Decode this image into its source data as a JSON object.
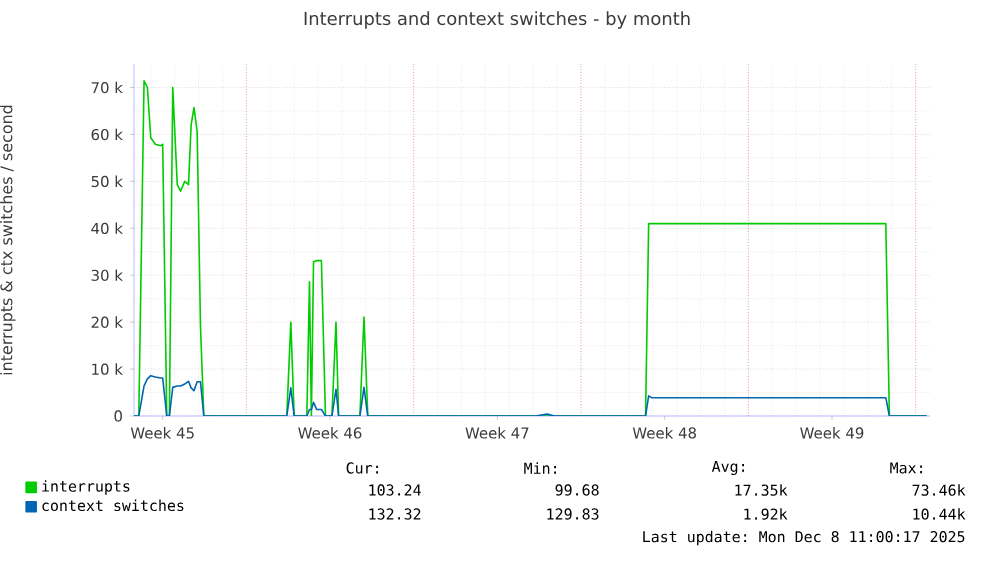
{
  "chart_data": {
    "type": "line",
    "title": "Interrupts and context switches - by month",
    "ylabel": "interrupts & ctx switches / second",
    "x": [
      "2025-11-05T07:12",
      "2025-11-05T12:00",
      "2025-11-05T17:17",
      "2025-11-05T20:38",
      "2025-11-06T00:00",
      "2025-11-06T04:34",
      "2025-11-06T10:05",
      "2025-11-06T12:00",
      "2025-11-06T16:05",
      "2025-11-06T18:43",
      "2025-11-06T22:05",
      "2025-11-07T02:38",
      "2025-11-07T06:00",
      "2025-11-07T10:05",
      "2025-11-07T13:55",
      "2025-11-07T16:34",
      "2025-11-07T19:26",
      "2025-11-07T22:34",
      "2025-11-08T01:55",
      "2025-11-08T05:17",
      "2025-11-11T16:34",
      "2025-11-11T20:38",
      "2025-11-12T00:00",
      "2025-11-12T12:43",
      "2025-11-12T15:22",
      "2025-11-12T17:17",
      "2025-11-12T19:26",
      "2025-11-12T22:34",
      "2025-11-13T03:22",
      "2025-11-13T07:26",
      "2025-11-13T13:55",
      "2025-11-13T18:00",
      "2025-11-13T20:38",
      "2025-11-14T18:00",
      "2025-11-14T22:05",
      "2025-11-15T01:55",
      "2025-11-22T02:24",
      "2025-11-22T13:55",
      "2025-11-22T21:36",
      "2025-11-26T16:48",
      "2025-11-26T19:55",
      "2025-11-26T22:48",
      "2025-12-06T18:00",
      "2025-12-06T21:36",
      "2025-12-08T11:00"
    ],
    "series": [
      {
        "name": "interrupts",
        "color": "#00cc00",
        "values": [
          0,
          0,
          71400,
          70000,
          59300,
          57900,
          57600,
          57900,
          0,
          0,
          70000,
          49300,
          47900,
          50000,
          49300,
          62100,
          65700,
          60700,
          19300,
          0,
          0,
          20000,
          0,
          0,
          28600,
          0,
          32900,
          33100,
          33100,
          0,
          0,
          20000,
          0,
          0,
          21100,
          0,
          0,
          0,
          0,
          0,
          41000,
          41000,
          41000,
          0,
          0
        ]
      },
      {
        "name": "context switches",
        "color": "#0066b3",
        "values": [
          0,
          0,
          6400,
          7900,
          8600,
          8300,
          8100,
          8100,
          0,
          0,
          6100,
          6400,
          6400,
          6800,
          7400,
          6000,
          5400,
          7300,
          7300,
          0,
          0,
          6000,
          0,
          0,
          1400,
          1400,
          2900,
          1400,
          1400,
          0,
          0,
          5700,
          0,
          0,
          6100,
          0,
          0,
          400,
          0,
          0,
          4300,
          3900,
          3900,
          0,
          0
        ]
      }
    ],
    "xlim": [
      "2025-11-05T07:12",
      "2025-12-08T14:24"
    ],
    "xticks": [
      {
        "value": "2025-11-06T12:00",
        "label": "Week 45"
      },
      {
        "value": "2025-11-10",
        "label": null
      },
      {
        "value": "2025-11-13T12:00",
        "label": "Week 46"
      },
      {
        "value": "2025-11-17",
        "label": null
      },
      {
        "value": "2025-11-20T12:00",
        "label": "Week 47"
      },
      {
        "value": "2025-11-24",
        "label": null
      },
      {
        "value": "2025-11-27T12:00",
        "label": "Week 48"
      },
      {
        "value": "2025-12-01",
        "label": null
      },
      {
        "value": "2025-12-04T12:00",
        "label": "Week 49"
      },
      {
        "value": "2025-12-08",
        "label": null
      }
    ],
    "ylim": [
      0,
      75000
    ],
    "yticks": [
      0,
      {
        "value": 10000,
        "label": "10 k"
      },
      {
        "value": 20000,
        "label": "20 k"
      },
      {
        "value": 30000,
        "label": "30 k"
      },
      {
        "value": 40000,
        "label": "40 k"
      },
      {
        "value": 50000,
        "label": "50 k"
      },
      {
        "value": 60000,
        "label": "60 k"
      },
      {
        "value": 70000,
        "label": "70 k"
      }
    ],
    "grid": true,
    "legend": "bottom",
    "annotations": [
      "Cur:",
      "Min:",
      "Avg:",
      "Max:",
      "103.24",
      "99.68",
      "17.35k",
      "73.46k",
      "132.32",
      "129.83",
      "1.92k",
      "10.44k",
      "Last update:  Mon Dec  8 11:00:17 2025"
    ]
  }
}
